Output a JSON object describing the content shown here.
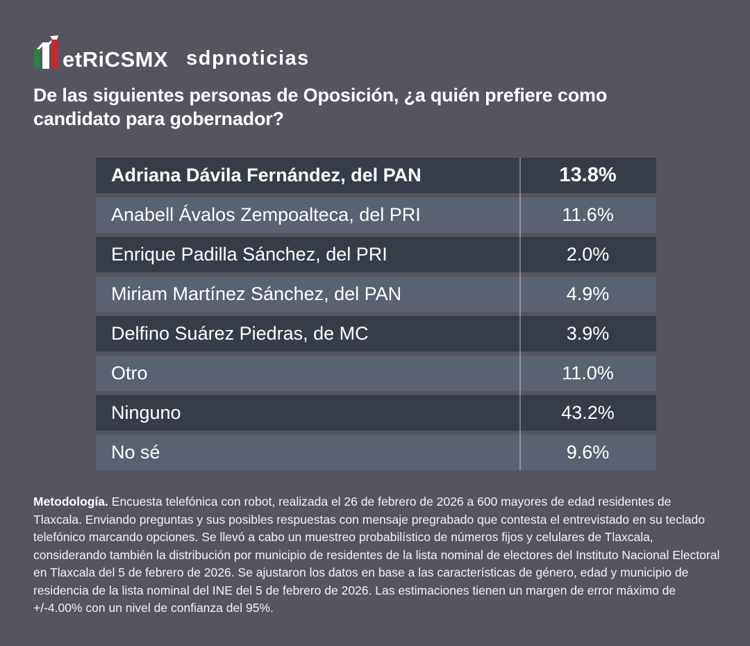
{
  "brand": {
    "logo_text": "etRiCSMX",
    "partner_text": "sdpnoticias",
    "icon": {
      "name": "trend-bars-icon",
      "bar_colors": [
        "#2b8044",
        "#ffffff",
        "#c2293077"
      ],
      "bar_green": "#2b8044",
      "bar_white": "#ffffff",
      "bar_red": "#c22930",
      "arrow_color": "#ffffff"
    }
  },
  "title": "De las siguientes personas de Oposición, ¿a quién prefiere como candidato para gobernador?",
  "chart_data": {
    "type": "table",
    "title": "De las siguientes personas de Oposición, ¿a quién prefiere como candidato para gobernador?",
    "unit": "%",
    "categories": [
      "Adriana Dávila Fernández, del PAN",
      "Anabell Ávalos Zempoalteca, del PRI",
      "Enrique Padilla Sánchez, del PRI",
      "Miriam Martínez Sánchez, del PAN",
      "Delfino Suárez Piedras, de MC",
      "Otro",
      "Ninguno",
      "No sé"
    ],
    "values": [
      13.8,
      11.6,
      2.0,
      4.9,
      3.9,
      11.0,
      43.2,
      9.6
    ],
    "rows": [
      {
        "label": "Adriana Dávila Fernández, del PAN",
        "value": "13.8%",
        "highlight": true
      },
      {
        "label": "Anabell Ávalos Zempoalteca, del PRI",
        "value": "11.6%",
        "highlight": false
      },
      {
        "label": "Enrique Padilla Sánchez, del PRI",
        "value": "2.0%",
        "highlight": false
      },
      {
        "label": "Miriam Martínez Sánchez, del PAN",
        "value": "4.9%",
        "highlight": false
      },
      {
        "label": "Delfino Suárez Piedras, de MC",
        "value": "3.9%",
        "highlight": false
      },
      {
        "label": "Otro",
        "value": "11.0%",
        "highlight": false
      },
      {
        "label": "Ninguno",
        "value": "43.2%",
        "highlight": false
      },
      {
        "label": "No sé",
        "value": "9.6%",
        "highlight": false
      }
    ],
    "colors": {
      "background": "#56555f",
      "row_dark": "#373d48",
      "row_light": "#5a6170",
      "divider": "rgba(255,255,255,0.32)",
      "text": "#ffffff"
    },
    "legend": "none",
    "grid": "off"
  },
  "methodology": {
    "label": "Metodología.",
    "text": "Encuesta telefónica con robot, realizada el 26 de febrero de 2026 a 600 mayores de edad residentes de Tlaxcala. Enviando preguntas y sus posibles respuestas con mensaje pregrabado que contesta el entrevistado en su teclado telefónico marcando opciones. Se llevó a cabo un muestreo probabilístico de números fijos y celulares de Tlaxcala, considerando también la distribución por municipio de residentes de la lista nominal de electores del Instituto Nacional Electoral en Tlaxcala del 5 de febrero de 2026. Se ajustaron los datos en base a las características de género, edad y municipio de residencia de la lista nominal del INE del 5 de febrero de 2026. Las estimaciones tienen un margen de error máximo de +/-4.00% con un nivel de confianza del 95%."
  }
}
